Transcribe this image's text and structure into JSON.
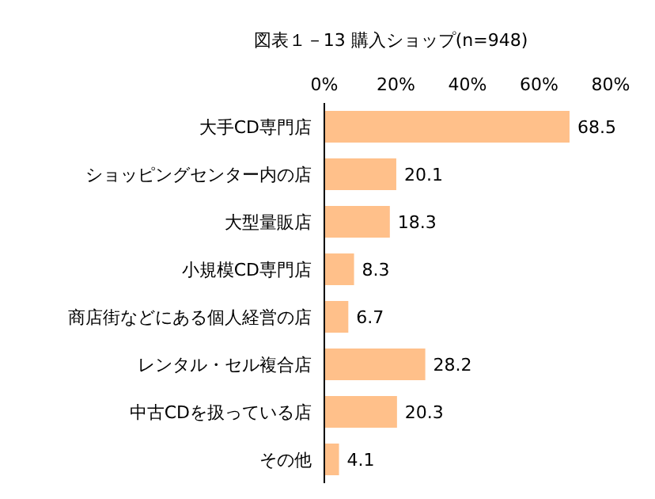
{
  "chart_data": {
    "type": "bar",
    "orientation": "horizontal",
    "title": "図表１－13 購入ショップ(n=948)",
    "categories": [
      "大手CD専門店",
      "ショッピングセンター内の店",
      "大型量販店",
      "小規模CD専門店",
      "商店街などにある個人経営の店",
      "レンタル・セル複合店",
      "中古CDを扱っている店",
      "その他"
    ],
    "values": [
      68.5,
      20.1,
      18.3,
      8.3,
      6.7,
      28.2,
      20.3,
      4.1
    ],
    "color": "#ffc08a",
    "data_labels": true,
    "xlim": [
      0,
      80
    ],
    "xticks": [
      {
        "value": 0,
        "label": "0%"
      },
      {
        "value": 20,
        "label": "20%"
      },
      {
        "value": 40,
        "label": "40%"
      },
      {
        "value": 60,
        "label": "60%"
      },
      {
        "value": 80,
        "label": "80%"
      }
    ],
    "grid": false
  }
}
